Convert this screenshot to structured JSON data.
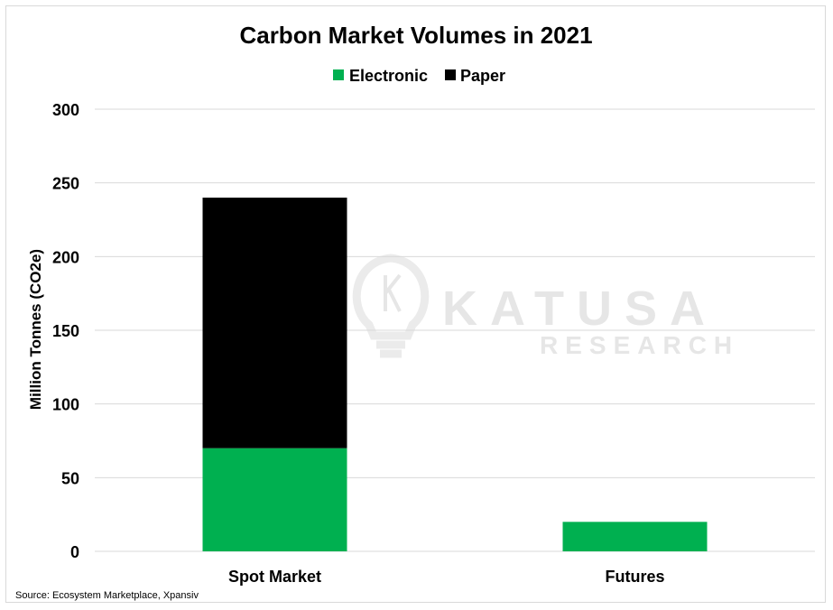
{
  "watermark": {
    "brand": "KATUSA",
    "sub": "RESEARCH"
  },
  "source": "Source: Ecosystem Marketplace, Xpansiv",
  "colors": {
    "Electronic": "#00b050",
    "Paper": "#000000",
    "grid": "#d9d9d9"
  },
  "chart_data": {
    "type": "bar",
    "stacked": true,
    "title": "Carbon Market Volumes in 2021",
    "xlabel": "",
    "ylabel": "Million Tonnes (CO2e)",
    "categories": [
      "Spot Market",
      "Futures"
    ],
    "series": [
      {
        "name": "Electronic",
        "values": [
          70,
          20
        ]
      },
      {
        "name": "Paper",
        "values": [
          170,
          0
        ]
      }
    ],
    "ylim": [
      0,
      300
    ],
    "yticks": [
      0,
      50,
      100,
      150,
      200,
      250,
      300
    ],
    "grid": true,
    "legend_position": "top"
  }
}
